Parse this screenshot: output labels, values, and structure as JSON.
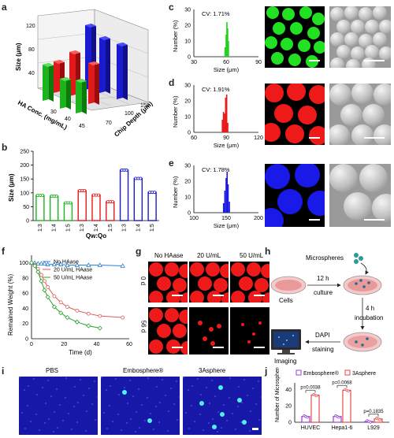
{
  "panel_labels": [
    "a",
    "b",
    "c",
    "d",
    "e",
    "f",
    "g",
    "h",
    "i",
    "j"
  ],
  "panel_a": {
    "ylabel": "Size (μm)",
    "yticks": [
      "40",
      "80",
      "120"
    ],
    "xlabel": "HA Conc. (mg/mL)",
    "xticks": [
      "30",
      "40",
      "45"
    ],
    "zlabel": "Chip Depth (μm)",
    "zticks": [
      "70",
      "100",
      "150"
    ]
  },
  "chart_data": [
    {
      "panel": "b",
      "type": "bar",
      "categories": [
        "1:3",
        "1:4",
        "1:5",
        "1:3",
        "1:4",
        "1:5",
        "1:3",
        "1:4",
        "1:5"
      ],
      "values": [
        91,
        88,
        64,
        108,
        92,
        68,
        182,
        152,
        102
      ],
      "colors": [
        "#1db31d",
        "#1db31d",
        "#1db31d",
        "#e01a1a",
        "#e01a1a",
        "#e01a1a",
        "#1a1ac8",
        "#1a1ac8",
        "#1a1ac8"
      ],
      "ylabel": "Size (μm)",
      "xlabel": "Qw:Qo",
      "yticks": [
        0,
        50,
        100,
        150,
        200,
        250
      ],
      "ylim": [
        0,
        250
      ]
    },
    {
      "panel": "f",
      "type": "line",
      "ylabel": "Remained Weight (%)",
      "xlabel": "Time (d)",
      "xticks": [
        0,
        20,
        40,
        60
      ],
      "yticks": [
        0,
        20,
        40,
        60,
        80,
        100
      ],
      "xlim": [
        0,
        60
      ],
      "ylim": [
        0,
        110
      ],
      "series": [
        {
          "name": "No HAase",
          "color": "#2a7fd4",
          "x": [
            0,
            2,
            4,
            6,
            8,
            10,
            14,
            18,
            22,
            28,
            35,
            42,
            56
          ],
          "y": [
            100,
            100,
            99,
            99,
            99,
            98,
            98,
            98,
            97,
            97,
            97,
            97,
            96
          ]
        },
        {
          "name": "20 U/mL HAase",
          "color": "#e05a5a",
          "x": [
            0,
            2,
            4,
            6,
            8,
            10,
            14,
            18,
            22,
            28,
            35,
            42,
            56
          ],
          "y": [
            100,
            97,
            92,
            84,
            76,
            68,
            56,
            48,
            42,
            37,
            33,
            30,
            28
          ]
        },
        {
          "name": "50 U/mL HAase",
          "color": "#2e9e2e",
          "x": [
            0,
            2,
            4,
            6,
            8,
            10,
            14,
            18,
            22,
            28,
            35,
            42
          ],
          "y": [
            100,
            96,
            88,
            76,
            64,
            55,
            42,
            34,
            28,
            22,
            17,
            14
          ]
        }
      ]
    },
    {
      "panel": "j",
      "type": "bar",
      "categories": [
        "HUVEC",
        "Hepa1-6",
        "L929"
      ],
      "series": [
        {
          "name": "Embosphere®",
          "color": "#9b3fd0",
          "values": [
            7,
            7,
            1
          ]
        },
        {
          "name": "3Asphere",
          "color": "#e34a4a",
          "values": [
            33,
            39,
            4
          ]
        }
      ],
      "ylabel": "Number of Microspheres",
      "yticks": [
        0,
        20,
        40
      ],
      "ylim": [
        0,
        48
      ],
      "annotations": [
        "p=0.0038",
        "p=0.0068",
        "p=0.1835"
      ]
    }
  ],
  "panel_c": {
    "cv": "CV: 1.71%",
    "ylabel": "Number (%)",
    "xlabel": "Size (μm)",
    "xticks": [
      "30",
      "60",
      "90"
    ]
  },
  "panel_d": {
    "cv": "CV: 1.91%",
    "ylabel": "Number (%)",
    "xlabel": "Size (μm)",
    "xticks": [
      "60",
      "90",
      "120"
    ]
  },
  "panel_e": {
    "cv": "CV: 1.78%",
    "ylabel": "Number (%)",
    "xlabel": "Size (μm)",
    "xticks": [
      "100",
      "150",
      "200"
    ]
  },
  "panel_g": {
    "cols": [
      "No HAase",
      "20 U/mL",
      "50 U/mL"
    ],
    "rows": [
      "0 d",
      "56 d"
    ]
  },
  "panel_h": {
    "microspheres": "Microspheres",
    "step1": "12 h",
    "step1b": "culture",
    "cells": "Cells",
    "step2": "4 h",
    "step2b": "incubation",
    "step3": "DAPI",
    "step3b": "staining",
    "imaging": "Imaging"
  },
  "panel_i": {
    "cols": [
      "PBS",
      "Embosphere®",
      "3Asphere"
    ]
  }
}
